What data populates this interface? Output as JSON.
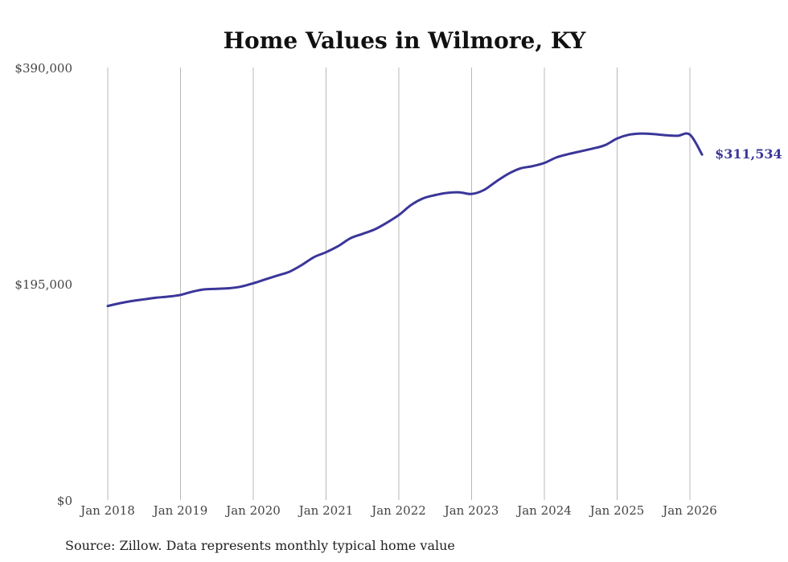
{
  "chart_data": {
    "type": "line",
    "title": "Home Values in Wilmore, KY",
    "xlabel": "",
    "ylabel": "",
    "ylim": [
      0,
      390000
    ],
    "grid": "vertical",
    "yticks": [
      {
        "value": 0,
        "label": "$0"
      },
      {
        "value": 195000,
        "label": "$195,000"
      },
      {
        "value": 390000,
        "label": "$390,000"
      }
    ],
    "xticks": [
      {
        "value": 2018,
        "label": "Jan 2018"
      },
      {
        "value": 2019,
        "label": "Jan 2019"
      },
      {
        "value": 2020,
        "label": "Jan 2020"
      },
      {
        "value": 2021,
        "label": "Jan 2021"
      },
      {
        "value": 2022,
        "label": "Jan 2022"
      },
      {
        "value": 2023,
        "label": "Jan 2023"
      },
      {
        "value": 2024,
        "label": "Jan 2024"
      },
      {
        "value": 2025,
        "label": "Jan 2025"
      },
      {
        "value": 2026,
        "label": "Jan 2026"
      }
    ],
    "series": [
      {
        "name": "Typical home value",
        "color": "#3b3699",
        "x": [
          2018.0,
          2018.167,
          2018.333,
          2018.5,
          2018.667,
          2018.833,
          2019.0,
          2019.167,
          2019.333,
          2019.5,
          2019.667,
          2019.833,
          2020.0,
          2020.167,
          2020.333,
          2020.5,
          2020.667,
          2020.833,
          2021.0,
          2021.167,
          2021.333,
          2021.5,
          2021.667,
          2021.833,
          2022.0,
          2022.167,
          2022.333,
          2022.5,
          2022.667,
          2022.833,
          2023.0,
          2023.167,
          2023.333,
          2023.5,
          2023.667,
          2023.833,
          2024.0,
          2024.167,
          2024.333,
          2024.5,
          2024.667,
          2024.833,
          2025.0,
          2025.167,
          2025.333,
          2025.5,
          2025.667,
          2025.833,
          2026.0,
          2026.167
        ],
        "values": [
          175000,
          177500,
          179500,
          181000,
          182500,
          183500,
          185000,
          188000,
          190000,
          190500,
          191000,
          192500,
          195500,
          199000,
          202500,
          206000,
          212000,
          219000,
          223500,
          229000,
          236000,
          240000,
          244000,
          250000,
          257000,
          266000,
          272000,
          275000,
          277000,
          277500,
          276000,
          279500,
          287000,
          294000,
          299000,
          301000,
          304000,
          309000,
          312000,
          314500,
          317000,
          320000,
          326000,
          329500,
          330500,
          330000,
          329000,
          328500,
          329500,
          311534
        ],
        "end_label": "$311,534"
      }
    ],
    "source": "Source: Zillow. Data represents monthly typical home value"
  }
}
